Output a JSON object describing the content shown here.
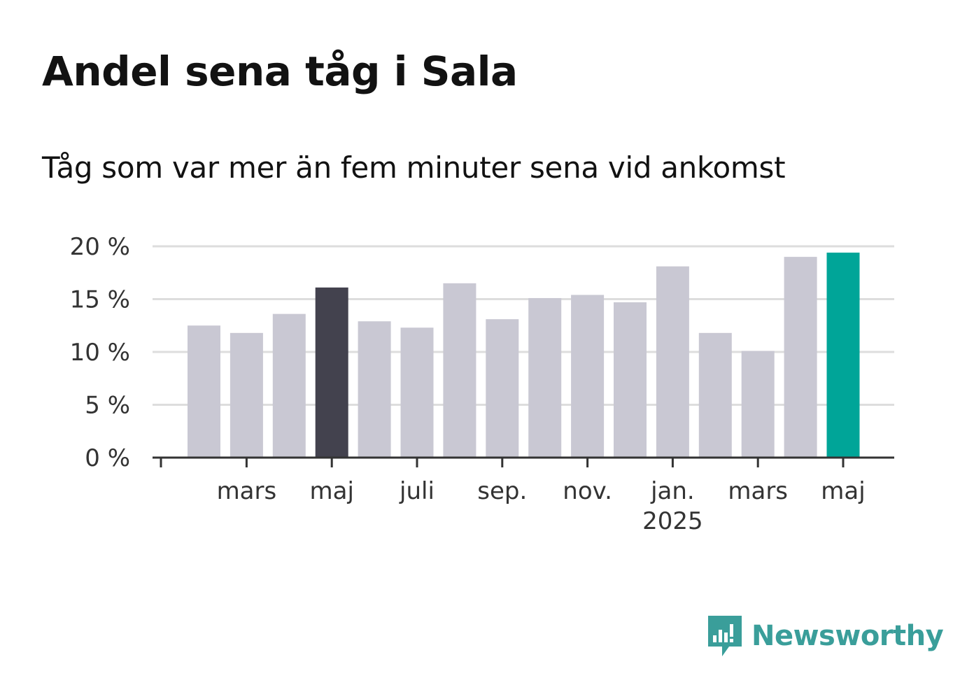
{
  "header": {
    "title": "Andel sena tåg i Sala",
    "subtitle": "Tåg som var mer än fem minuter sena vid ankomst"
  },
  "brand": {
    "name": "Newsworthy",
    "icon": "newsworthy-logo-icon",
    "color": "#3a9e9a"
  },
  "colors": {
    "bar": "#c9c8d3",
    "highlight_dark": "#43424e",
    "highlight_latest": "#00a598",
    "gridline": "#dddddd",
    "axis": "#333333"
  },
  "chart_data": {
    "type": "bar",
    "title": "Andel sena tåg i Sala",
    "subtitle": "Tåg som var mer än fem minuter sena vid ankomst",
    "categories": [
      "2024-02",
      "2024-03",
      "2024-04",
      "2024-05",
      "2024-06",
      "2024-07",
      "2024-08",
      "2024-09",
      "2024-10",
      "2024-11",
      "2024-12",
      "2025-01",
      "2025-02",
      "2025-03",
      "2025-04",
      "2025-05"
    ],
    "values": [
      12.5,
      11.8,
      13.6,
      16.1,
      12.9,
      12.3,
      16.5,
      13.1,
      15.1,
      15.4,
      14.7,
      18.1,
      11.8,
      10.1,
      19.0,
      19.4
    ],
    "highlight": {
      "2024-05": "dark",
      "2025-05": "latest"
    },
    "ylim": [
      0,
      20
    ],
    "yticks": [
      {
        "value": 0,
        "label": "0 %"
      },
      {
        "value": 5,
        "label": "5 %"
      },
      {
        "value": 10,
        "label": "10 %"
      },
      {
        "value": 15,
        "label": "15 %"
      },
      {
        "value": 20,
        "label": "20 %"
      }
    ],
    "xticks": [
      {
        "category": "2024-03",
        "label": "mars",
        "sublabel": ""
      },
      {
        "category": "2024-05",
        "label": "maj",
        "sublabel": ""
      },
      {
        "category": "2024-07",
        "label": "juli",
        "sublabel": ""
      },
      {
        "category": "2024-09",
        "label": "sep.",
        "sublabel": ""
      },
      {
        "category": "2024-11",
        "label": "nov.",
        "sublabel": ""
      },
      {
        "category": "2025-01",
        "label": "jan.",
        "sublabel": "2025"
      },
      {
        "category": "2025-03",
        "label": "mars",
        "sublabel": ""
      },
      {
        "category": "2025-05",
        "label": "maj",
        "sublabel": ""
      }
    ],
    "xlabel": "",
    "ylabel": "",
    "grid": true,
    "legend": "none"
  }
}
